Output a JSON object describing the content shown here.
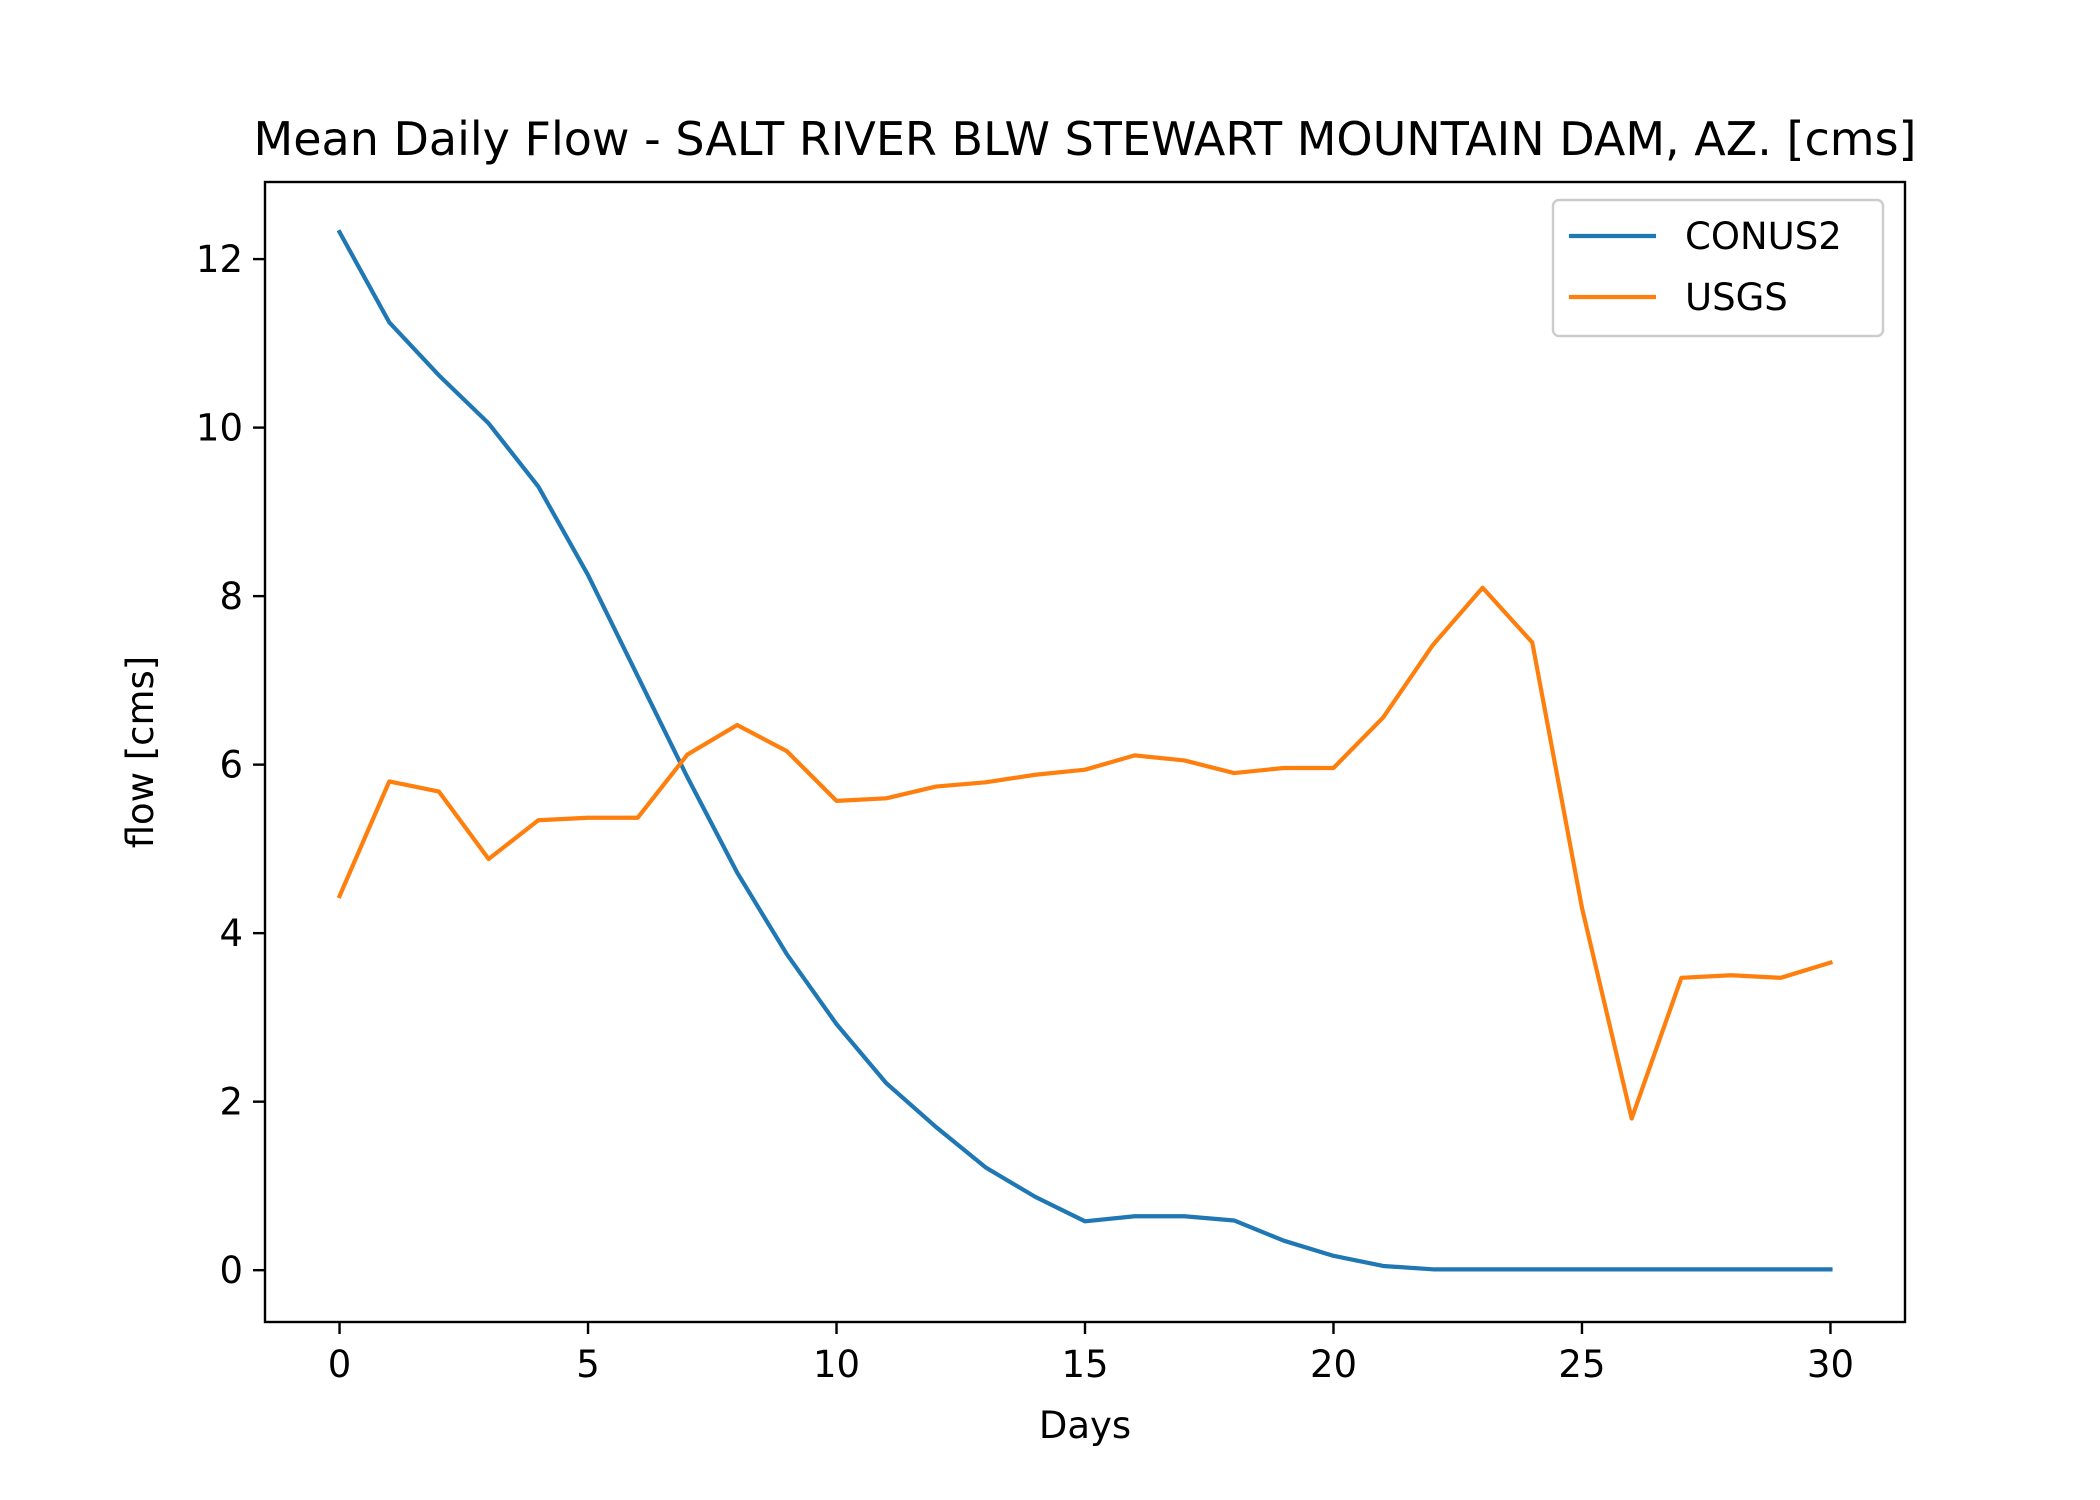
{
  "chart_data": {
    "type": "line",
    "title": "Mean Daily Flow - SALT RIVER BLW STEWART MOUNTAIN DAM, AZ. [cms]",
    "xlabel": "Days",
    "ylabel": "flow [cms]",
    "xlim": [
      -1.5,
      31.5
    ],
    "ylim": [
      -0.615,
      12.915
    ],
    "xticks": [
      0,
      5,
      10,
      15,
      20,
      25,
      30
    ],
    "yticks": [
      0,
      2,
      4,
      6,
      8,
      10,
      12
    ],
    "grid": false,
    "legend": "top-right",
    "x": [
      0,
      1,
      2,
      3,
      4,
      5,
      6,
      7,
      8,
      9,
      10,
      11,
      12,
      13,
      14,
      15,
      16,
      17,
      18,
      19,
      20,
      21,
      22,
      23,
      24,
      25,
      26,
      27,
      28,
      29,
      30
    ],
    "series": [
      {
        "name": "CONUS2",
        "color": "#1f77b4",
        "values": [
          12.32,
          11.25,
          10.62,
          10.05,
          9.3,
          8.25,
          7.05,
          5.85,
          4.72,
          3.75,
          2.92,
          2.22,
          1.7,
          1.22,
          0.87,
          0.58,
          0.64,
          0.64,
          0.59,
          0.35,
          0.17,
          0.05,
          0.01,
          0.01,
          0.01,
          0.01,
          0.01,
          0.01,
          0.01,
          0.01,
          0.01
        ]
      },
      {
        "name": "USGS",
        "color": "#ff7f0e",
        "values": [
          4.44,
          5.8,
          5.68,
          4.88,
          5.34,
          5.37,
          5.37,
          6.12,
          6.47,
          6.16,
          5.57,
          5.6,
          5.74,
          5.79,
          5.88,
          5.94,
          6.11,
          6.05,
          5.9,
          5.96,
          5.96,
          6.56,
          7.42,
          8.1,
          7.45,
          4.3,
          1.8,
          3.47,
          3.5,
          3.47,
          3.65
        ]
      }
    ]
  }
}
